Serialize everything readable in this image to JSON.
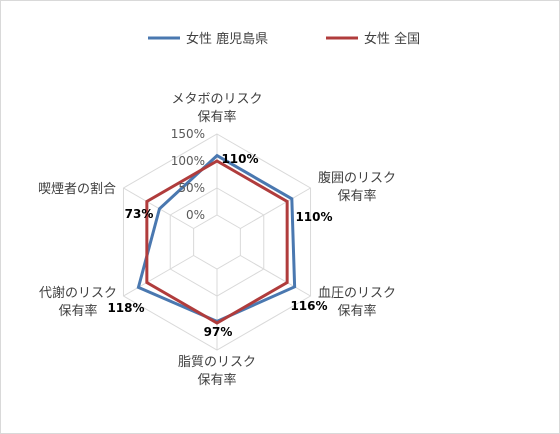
{
  "chart_data": {
    "type": "radar",
    "axes": [
      {
        "lines": [
          "メタボのリスク",
          "保有率"
        ],
        "data_label": "110%"
      },
      {
        "lines": [
          "腹囲のリスク",
          "保有率"
        ],
        "data_label": "110%"
      },
      {
        "lines": [
          "血圧のリスク",
          "保有率"
        ],
        "data_label": "116%"
      },
      {
        "lines": [
          "脂質のリスク",
          "保有率"
        ],
        "data_label": "97%"
      },
      {
        "lines": [
          "代謝のリスク",
          "保有率"
        ],
        "data_label": "118%"
      },
      {
        "lines": [
          "喫煙者の割合"
        ],
        "data_label": "73%"
      }
    ],
    "series": [
      {
        "name": "女性 鹿児島県",
        "color": "#4a78b0",
        "values": [
          110,
          110,
          116,
          97,
          118,
          73
        ]
      },
      {
        "name": "女性 全国",
        "color": "#b03c3c",
        "values": [
          100,
          100,
          100,
          100,
          100,
          100
        ]
      }
    ],
    "r_ticks": [
      "0%",
      "50%",
      "100%",
      "150%"
    ],
    "r_tick_values": [
      0,
      50,
      100,
      150
    ],
    "r_min": -50,
    "r_max": 150,
    "legend_position": "top"
  }
}
